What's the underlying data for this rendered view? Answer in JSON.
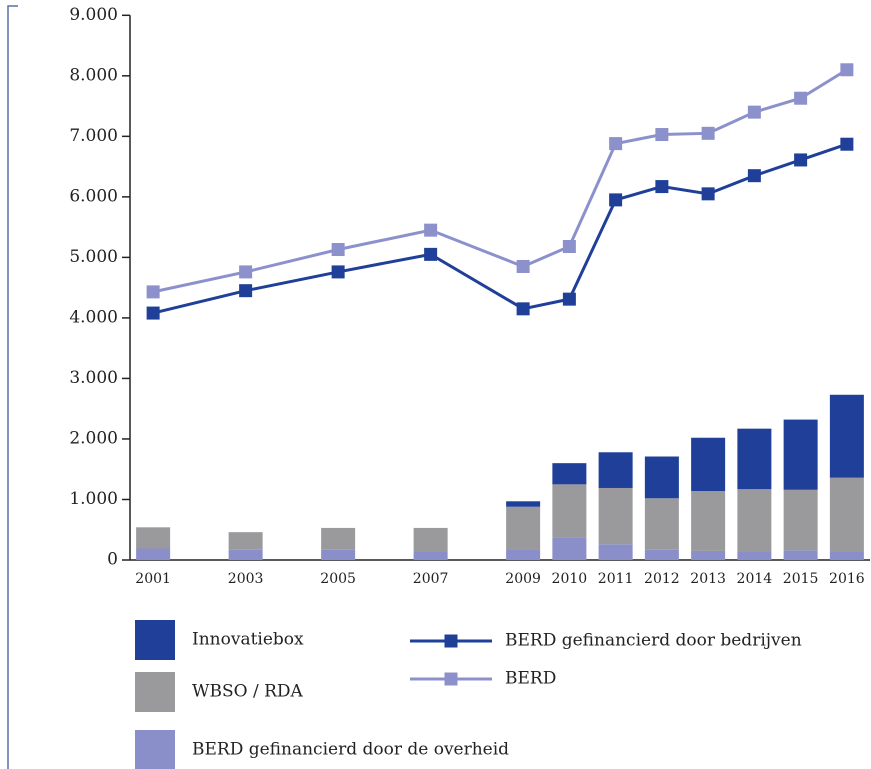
{
  "chart_data": {
    "type": "combo",
    "x": [
      2001,
      2003,
      2005,
      2007,
      2009,
      2010,
      2011,
      2012,
      2013,
      2014,
      2015,
      2016
    ],
    "xlim": [
      2000.5,
      2016.5
    ],
    "ylim": [
      0,
      9000
    ],
    "yticks": [
      0,
      {
        "value": 1000,
        "label": "1.000"
      },
      {
        "value": 2000,
        "label": "2.000"
      },
      {
        "value": 3000,
        "label": "3.000"
      },
      {
        "value": 4000,
        "label": "4.000"
      },
      {
        "value": 5000,
        "label": "5.000"
      },
      {
        "value": 6000,
        "label": "6.000"
      },
      {
        "value": 7000,
        "label": "7.000"
      },
      {
        "value": 8000,
        "label": "8.000"
      },
      {
        "value": 9000,
        "label": "9.000"
      }
    ],
    "series": [
      {
        "name": "BERD gefinancierd door de overheid",
        "type": "bar",
        "color": "#8a8fc9",
        "values": [
          190,
          170,
          170,
          140,
          180,
          370,
          260,
          170,
          150,
          140,
          160,
          140
        ]
      },
      {
        "name": "WBSO / RDA",
        "type": "bar",
        "color": "#9a9a9c",
        "values": [
          350,
          290,
          360,
          390,
          700,
          880,
          930,
          850,
          990,
          1030,
          1000,
          1220
        ]
      },
      {
        "name": "Innovatiebox",
        "type": "bar",
        "color": "#1f3f99",
        "values": [
          0,
          0,
          0,
          0,
          90,
          350,
          590,
          690,
          880,
          1000,
          1160,
          1370
        ]
      },
      {
        "name": "BERD gefinancierd door bedrijven",
        "type": "line",
        "color": "#1f3f99",
        "values": [
          4080,
          4450,
          4760,
          5050,
          4150,
          4310,
          5950,
          6170,
          6050,
          6350,
          6610,
          6870
        ]
      },
      {
        "name": "BERD",
        "type": "line",
        "color": "#8c91cc",
        "values": [
          4430,
          4760,
          5130,
          5450,
          4850,
          5180,
          6880,
          7030,
          7050,
          7400,
          7630,
          8100
        ]
      }
    ]
  }
}
